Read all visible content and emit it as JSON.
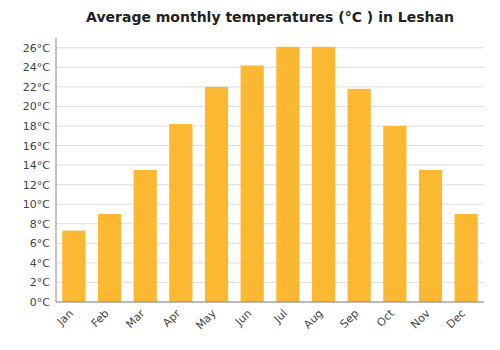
{
  "chart_data": {
    "type": "bar",
    "title": "Average monthly temperatures (°C ) in Leshan",
    "categories": [
      "Jan",
      "Feb",
      "Mar",
      "Apr",
      "May",
      "Jun",
      "Jul",
      "Aug",
      "Sep",
      "Oct",
      "Nov",
      "Dec"
    ],
    "values": [
      7.3,
      9.0,
      13.5,
      18.2,
      22.0,
      24.2,
      26.1,
      26.1,
      21.8,
      18.0,
      13.5,
      9.0
    ],
    "color": "#FDB833",
    "ylim": [
      0,
      27
    ],
    "yticks": [
      {
        "value": 0,
        "label": "0°C"
      },
      {
        "value": 2,
        "label": "2°C"
      },
      {
        "value": 4,
        "label": "4°C"
      },
      {
        "value": 6,
        "label": "6°C"
      },
      {
        "value": 8,
        "label": "8°C"
      },
      {
        "value": 10,
        "label": "10°C"
      },
      {
        "value": 12,
        "label": "12°C"
      },
      {
        "value": 14,
        "label": "14°C"
      },
      {
        "value": 16,
        "label": "16°C"
      },
      {
        "value": 18,
        "label": "18°C"
      },
      {
        "value": 20,
        "label": "20°C"
      },
      {
        "value": 22,
        "label": "22°C"
      },
      {
        "value": 24,
        "label": "24°C"
      },
      {
        "value": 26,
        "label": "26°C"
      }
    ],
    "grid": true
  }
}
